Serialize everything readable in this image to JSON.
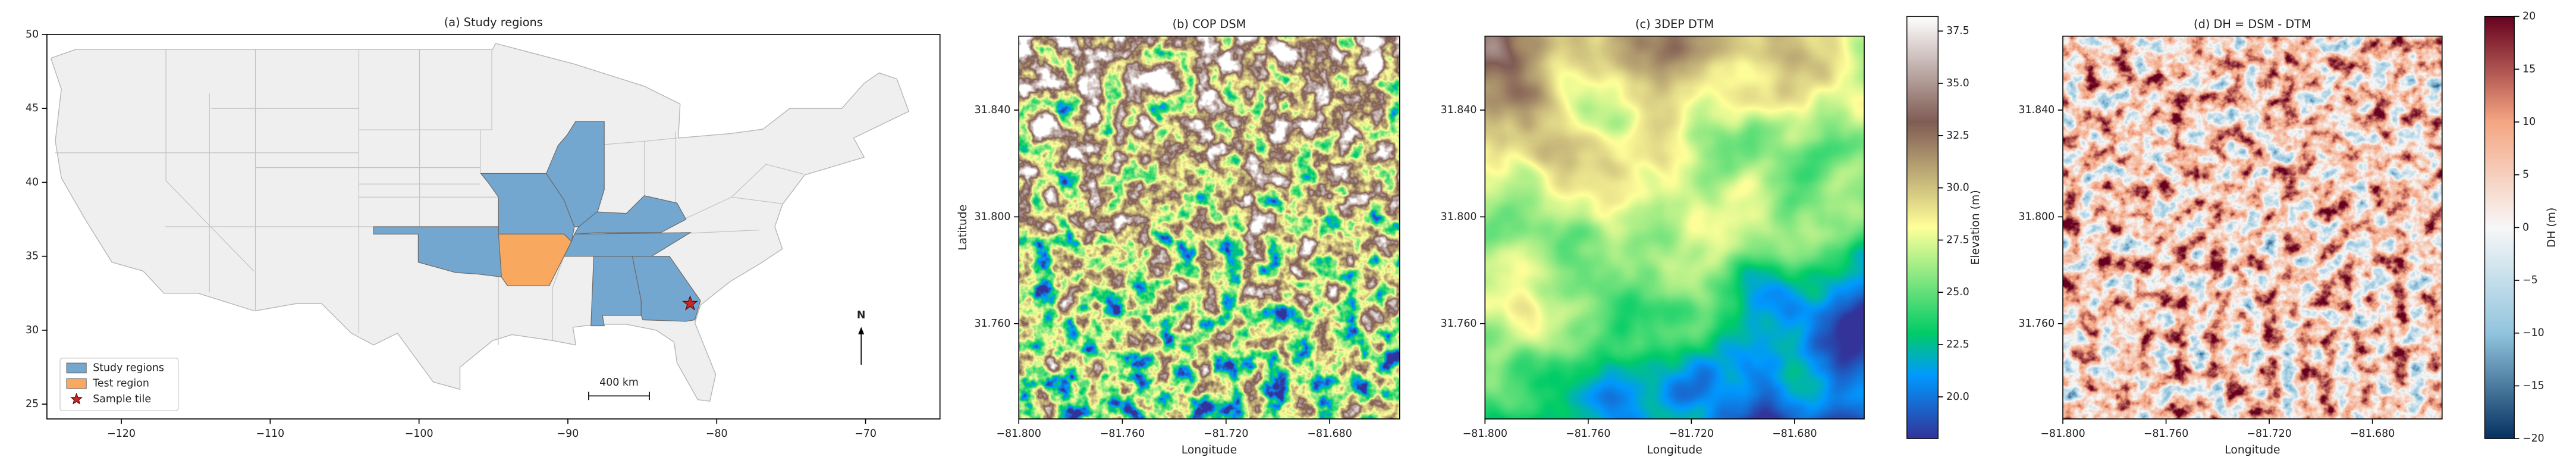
{
  "chart_data": [
    {
      "type": "map",
      "title": "(a) Study regions",
      "xlim": [
        -125,
        -65
      ],
      "ylim": [
        24,
        50
      ],
      "xticks": [
        {
          "value": -120,
          "label": "−120"
        },
        {
          "value": -110,
          "label": "−110"
        },
        {
          "value": -100,
          "label": "−100"
        },
        {
          "value": -90,
          "label": "−90"
        },
        {
          "value": -80,
          "label": "−80"
        },
        {
          "value": -70,
          "label": "−70"
        }
      ],
      "yticks": [
        25,
        30,
        35,
        40,
        45,
        50
      ],
      "legend": [
        {
          "name": "Study regions",
          "color": "#74a7d0",
          "marker": "patch"
        },
        {
          "name": "Test region",
          "color": "#f9a85f",
          "marker": "patch"
        },
        {
          "name": "Sample tile",
          "color": "#c62828",
          "marker": "star"
        }
      ],
      "legend_loc": "lower left",
      "scale_bar": "400 km",
      "north_arrow": "N"
    },
    {
      "type": "raster",
      "title": "(b) COP DSM",
      "xlabel": "Longitude",
      "ylabel": "Latitude",
      "xlim": [
        -81.8,
        -81.653
      ],
      "ylim": [
        31.7243,
        31.8677
      ],
      "xticks": [
        {
          "value": -81.8,
          "label": "−81.800"
        },
        {
          "value": -81.76,
          "label": "−81.760"
        },
        {
          "value": -81.72,
          "label": "−81.720"
        },
        {
          "value": -81.68,
          "label": "−81.680"
        }
      ],
      "yticks": [
        {
          "value": 31.76,
          "label": "31.760"
        },
        {
          "value": 31.8,
          "label": "31.800"
        },
        {
          "value": 31.84,
          "label": "31.840"
        }
      ],
      "colormap": "terrain"
    },
    {
      "type": "raster",
      "title": "(c) 3DEP DTM",
      "xlabel": "Longitude",
      "xlim": [
        -81.8,
        -81.653
      ],
      "ylim": [
        31.7243,
        31.8677
      ],
      "xticks": [
        {
          "value": -81.8,
          "label": "−81.800"
        },
        {
          "value": -81.76,
          "label": "−81.760"
        },
        {
          "value": -81.72,
          "label": "−81.720"
        },
        {
          "value": -81.68,
          "label": "−81.680"
        }
      ],
      "yticks": [
        {
          "value": 31.76,
          "label": "31.760"
        },
        {
          "value": 31.8,
          "label": "31.800"
        },
        {
          "value": 31.84,
          "label": "31.840"
        }
      ],
      "colormap": "terrain",
      "colorbar": {
        "label": "Elevation (m)",
        "clim": [
          18,
          38.2
        ],
        "ticks": [
          {
            "value": 20,
            "label": "20.0"
          },
          22.5,
          {
            "value": 25,
            "label": "25.0"
          },
          27.5,
          {
            "value": 30,
            "label": "30.0"
          },
          32.5,
          {
            "value": 35,
            "label": "35.0"
          },
          37.5
        ]
      }
    },
    {
      "type": "raster",
      "title": "(d) DH = DSM - DTM",
      "xlabel": "Longitude",
      "xlim": [
        -81.8,
        -81.653
      ],
      "ylim": [
        31.7243,
        31.8677
      ],
      "xticks": [
        {
          "value": -81.8,
          "label": "−81.800"
        },
        {
          "value": -81.76,
          "label": "−81.760"
        },
        {
          "value": -81.72,
          "label": "−81.720"
        },
        {
          "value": -81.68,
          "label": "−81.680"
        }
      ],
      "yticks": [
        {
          "value": 31.76,
          "label": "31.760"
        },
        {
          "value": 31.8,
          "label": "31.800"
        },
        {
          "value": 31.84,
          "label": "31.840"
        }
      ],
      "colormap": "RdBu_r",
      "colorbar": {
        "label": "DH (m)",
        "clim": [
          -20,
          20
        ],
        "ticks": [
          {
            "value": -20,
            "label": "−20"
          },
          {
            "value": -15,
            "label": "−15"
          },
          {
            "value": -10,
            "label": "−10"
          },
          {
            "value": -5,
            "label": "−5"
          },
          0,
          5,
          10,
          15,
          20
        ]
      }
    }
  ]
}
